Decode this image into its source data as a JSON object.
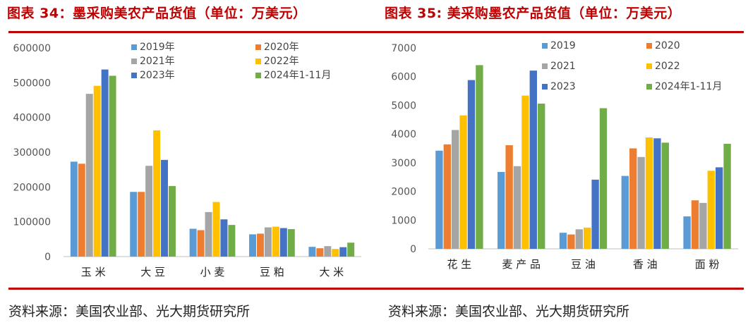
{
  "header": {
    "title_left": "图表 34：墨采购美农产品货值（单位：万美元）",
    "title_right": "图表 35: 美采购墨农产品货值（单位：万美元）"
  },
  "footer": {
    "source_left": "资料来源：美国农业部、光大期货研究所",
    "source_right": "资料来源：美国农业部、光大期货研究所"
  },
  "colors": {
    "series": [
      "#5b9bd5",
      "#ed7d31",
      "#a5a5a5",
      "#ffc000",
      "#4472c4",
      "#70ad47"
    ],
    "accent": "#c00000"
  },
  "chart_data": [
    {
      "type": "bar",
      "title": "图表 34：墨采购美农产品货值（单位：万美元）",
      "categories": [
        "玉米",
        "大豆",
        "小麦",
        "豆粕",
        "大米"
      ],
      "ylim": [
        0,
        600000
      ],
      "yticks": [
        "0",
        "100000",
        "200000",
        "300000",
        "400000",
        "500000",
        "600000"
      ],
      "legend_position": "top-right",
      "series": [
        {
          "name": "2019年",
          "values": [
            273000,
            186000,
            80000,
            64000,
            28000
          ]
        },
        {
          "name": "2020年",
          "values": [
            267000,
            186000,
            76000,
            66000,
            24000
          ]
        },
        {
          "name": "2021年",
          "values": [
            468000,
            261000,
            128000,
            84000,
            30000
          ]
        },
        {
          "name": "2022年",
          "values": [
            491000,
            363000,
            157000,
            86000,
            22000
          ]
        },
        {
          "name": "2023年",
          "values": [
            538000,
            278000,
            107000,
            82000,
            27000
          ]
        },
        {
          "name": "2024年1-11月",
          "values": [
            520000,
            203000,
            91000,
            79000,
            40000
          ]
        }
      ]
    },
    {
      "type": "bar",
      "title": "图表 35: 美采购墨农产品货值（单位：万美元）",
      "categories": [
        "花生",
        "麦产品",
        "豆油",
        "香油",
        "面粉"
      ],
      "ylim": [
        0,
        7000
      ],
      "yticks": [
        "0",
        "1000",
        "2000",
        "3000",
        "4000",
        "5000",
        "6000",
        "7000"
      ],
      "legend_position": "top-right",
      "series": [
        {
          "name": "2019",
          "values": [
            3420,
            2680,
            560,
            2540,
            1130
          ]
        },
        {
          "name": "2020",
          "values": [
            3640,
            3610,
            500,
            3500,
            1690
          ]
        },
        {
          "name": "2021",
          "values": [
            4140,
            2880,
            680,
            3200,
            1600
          ]
        },
        {
          "name": "2022",
          "values": [
            4650,
            5340,
            740,
            3880,
            2720
          ]
        },
        {
          "name": "2023",
          "values": [
            5880,
            6210,
            2410,
            3850,
            2840
          ]
        },
        {
          "name": "2024年1-11月",
          "values": [
            6400,
            5060,
            4900,
            3700,
            3660
          ]
        }
      ]
    }
  ]
}
